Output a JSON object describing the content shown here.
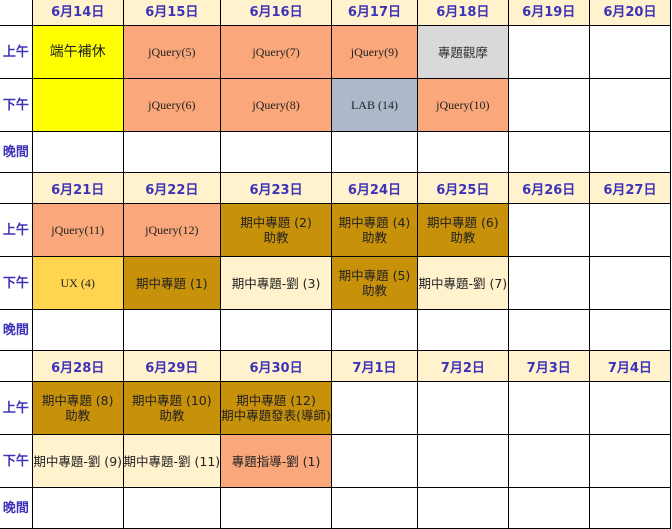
{
  "slot_labels": {
    "morning": "上午",
    "afternoon": "下午",
    "evening": "晚間"
  },
  "weeks": [
    {
      "days": [
        "6月14日",
        "6月15日",
        "6月16日",
        "6月17日",
        "6月18日",
        "6月19日",
        "6月20日"
      ],
      "morning": [
        {
          "lines": [
            "端午補休"
          ],
          "color": "#ffff00"
        },
        {
          "lines": [
            "jQuery(5)"
          ],
          "color": "#f9a77b"
        },
        {
          "lines": [
            "jQuery(7)"
          ],
          "color": "#f9a77b"
        },
        {
          "lines": [
            "jQuery(9)"
          ],
          "color": "#f9a77b"
        },
        {
          "lines": [
            "專題觀摩"
          ],
          "color": "#d9d9d9"
        },
        {
          "lines": [],
          "color": "#ffffff"
        },
        {
          "lines": [],
          "color": "#ffffff"
        }
      ],
      "afternoon": [
        {
          "lines": [],
          "color": "#ffff00"
        },
        {
          "lines": [
            "jQuery(6)"
          ],
          "color": "#f9a77b"
        },
        {
          "lines": [
            "jQuery(8)"
          ],
          "color": "#f9a77b"
        },
        {
          "lines": [
            "LAB (14)"
          ],
          "color": "#adb9ca"
        },
        {
          "lines": [
            "jQuery(10)"
          ],
          "color": "#f9a77b"
        },
        {
          "lines": [],
          "color": "#ffffff"
        },
        {
          "lines": [],
          "color": "#ffffff"
        }
      ]
    },
    {
      "days": [
        "6月21日",
        "6月22日",
        "6月23日",
        "6月24日",
        "6月25日",
        "6月26日",
        "6月27日"
      ],
      "morning": [
        {
          "lines": [
            "jQuery(11)"
          ],
          "color": "#f9a77b"
        },
        {
          "lines": [
            "jQuery(12)"
          ],
          "color": "#f9a77b"
        },
        {
          "lines": [
            "期中專題 (2)",
            "助教"
          ],
          "color": "#c8910a"
        },
        {
          "lines": [
            "期中專題 (4)",
            "助教"
          ],
          "color": "#c8910a"
        },
        {
          "lines": [
            "期中專題 (6)",
            "助教"
          ],
          "color": "#c8910a"
        },
        {
          "lines": [],
          "color": "#ffffff"
        },
        {
          "lines": [],
          "color": "#ffffff"
        }
      ],
      "afternoon": [
        {
          "lines": [
            "UX (4)"
          ],
          "color": "#ffd54f"
        },
        {
          "lines": [
            "期中專題 (1)"
          ],
          "color": "#c8910a"
        },
        {
          "lines": [
            "期中專題-劉 (3)"
          ],
          "color": "#fff2cc"
        },
        {
          "lines": [
            "期中專題 (5)",
            "助教"
          ],
          "color": "#c8910a"
        },
        {
          "lines": [
            "期中專題-劉 (7)"
          ],
          "color": "#fff2cc"
        },
        {
          "lines": [],
          "color": "#ffffff"
        },
        {
          "lines": [],
          "color": "#ffffff"
        }
      ]
    },
    {
      "days": [
        "6月28日",
        "6月29日",
        "6月30日",
        "7月1日",
        "7月2日",
        "7月3日",
        "7月4日"
      ],
      "morning": [
        {
          "lines": [
            "期中專題 (8)",
            "助教"
          ],
          "color": "#c8910a"
        },
        {
          "lines": [
            "期中專題 (10)",
            "助教"
          ],
          "color": "#c8910a"
        },
        {
          "lines": [
            "期中專題 (12)",
            "期中專題發表(導師)"
          ],
          "color": "#c8910a"
        },
        {
          "lines": [],
          "color": "#ffffff"
        },
        {
          "lines": [],
          "color": "#ffffff"
        },
        {
          "lines": [],
          "color": "#ffffff"
        },
        {
          "lines": [],
          "color": "#ffffff"
        }
      ],
      "afternoon": [
        {
          "lines": [
            "期中專題-劉 (9)"
          ],
          "color": "#fff2cc"
        },
        {
          "lines": [
            "期中專題-劉 (11)"
          ],
          "color": "#fff2cc"
        },
        {
          "lines": [
            "專題指導-劉 (1)"
          ],
          "color": "#f9a77b"
        },
        {
          "lines": [],
          "color": "#ffffff"
        },
        {
          "lines": [],
          "color": "#ffffff"
        },
        {
          "lines": [],
          "color": "#ffffff"
        },
        {
          "lines": [],
          "color": "#ffffff"
        }
      ]
    }
  ]
}
